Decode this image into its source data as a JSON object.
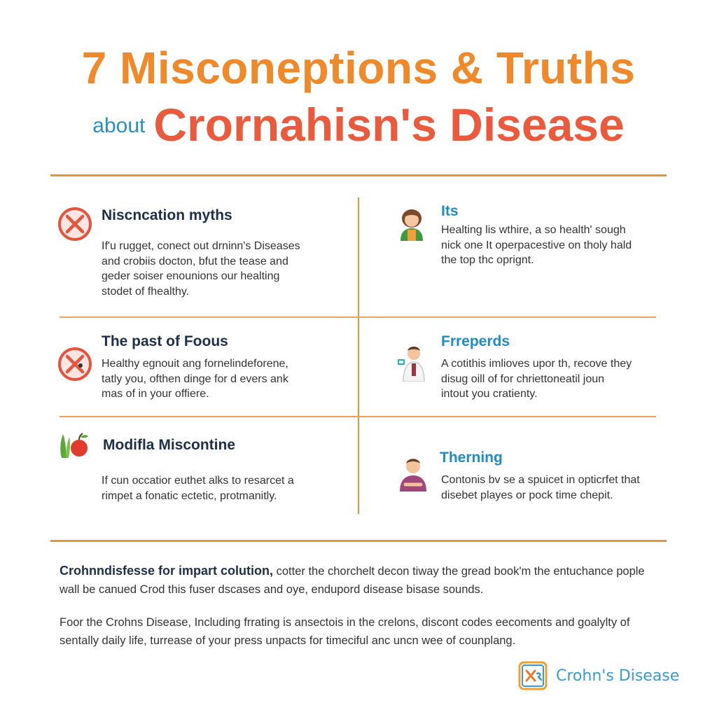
{
  "header": {
    "title_line1": "7 Misconeptions &  Truths",
    "about": "about",
    "title_disease": "Crornahisn's Disease"
  },
  "grid": {
    "left": [
      {
        "title": "Niscncation myths",
        "text": "If'u rugget, conect out drninn's Diseases\nand crobiis docton, bfut the tease and\ngeder soiser enounions our healting\nstodet of fhealthy.",
        "icon": "no-symbol-icon"
      },
      {
        "title": "The past of Foous",
        "text": "Healthy egnouit ang fornelindeforene,\ntatly you, ofthen dinge for d evers ank\nmas of in your offiere.",
        "icon": "no-symbol-icon"
      },
      {
        "title": "Modifla Miscontine",
        "text": "If cun occatior euthet alks to resarcet a\nrimpet a fonatic ectetic, protmanitly.",
        "icon": "vegetables-apple-icon"
      }
    ],
    "right": [
      {
        "title": "Its",
        "text": "Healting lis wthire, a so health' sough\nnick one It operpacestive on tholy hald\nthe top thc oprignt.",
        "icon": "girl-avatar-icon"
      },
      {
        "title": "Frreperds",
        "text": "A cotithis imlioves upor th, recove they\ndisug oill of for chriettoneatil joun\nintout you cratienty.",
        "icon": "person-with-phone-icon"
      },
      {
        "title": "Therning",
        "text": "Contonis bv se a spuicet in opticrfet that\ndisebet playes or pock time chepit.",
        "icon": "person-avatar-icon"
      }
    ]
  },
  "footer": {
    "p1_lead": "Crohnndisfesse for impart colution,",
    "p1_rest": " cotter the chorchelt decon tiway the gread book'm the entuchance pople wall be canued Crod this fuser dscases and oye, endupord disease bisase sounds.",
    "p2": "Foor the Crohns Disease, Including frrating is ansectois in the crelons, discont codes eecoments and goalylty of sentally daily life, turrease of your press unpacts for timeciful anc uncn wee of counplang.",
    "brand": "Crohn's Disease",
    "brand_icon": "crohns-logo-icon"
  },
  "colors": {
    "orange": "#f0892a",
    "red": "#ea5a3c",
    "blue": "#1f8cc8",
    "navy": "#1e2f4a",
    "divider": "#e8923d"
  }
}
